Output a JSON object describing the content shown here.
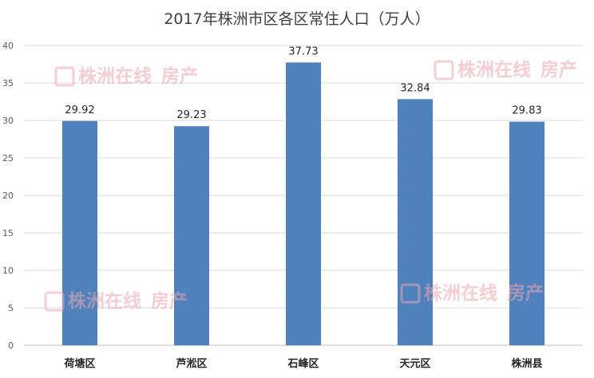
{
  "chart_data": {
    "type": "bar",
    "title": "2017年株洲市区各区常住人口（万人）",
    "categories": [
      "荷塘区",
      "芦淞区",
      "石峰区",
      "天元区",
      "株洲县"
    ],
    "values": [
      29.92,
      29.23,
      37.73,
      32.84,
      29.83
    ],
    "data_labels": [
      "29.92",
      "29.23",
      "37.73",
      "32.84",
      "29.83"
    ],
    "yticks": [
      "0",
      "5",
      "10",
      "15",
      "20",
      "25",
      "30",
      "35",
      "40"
    ],
    "ylim": [
      0,
      40
    ],
    "grid": true,
    "bar_color": "#4f81bd"
  },
  "watermark": {
    "text": "株洲在线",
    "suffix": "房产"
  }
}
